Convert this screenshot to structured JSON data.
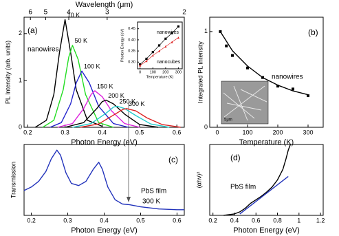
{
  "chart_data": [
    {
      "type": "line",
      "xlabel": "Photon Energy (eV)",
      "ylabel": "PL Intensity (arb. units)",
      "top_axis_label": "Wavelength (μm)",
      "xlim": [
        0.19,
        0.62
      ],
      "ylim": [
        0,
        2.35
      ],
      "xticks": [
        0.2,
        0.3,
        0.4,
        0.5,
        0.6
      ],
      "yticks": [
        0,
        1,
        2
      ],
      "top_ticks": [
        {
          "value": 0.207,
          "label": "6"
        },
        {
          "value": 0.248,
          "label": "5"
        },
        {
          "value": 0.31,
          "label": "4"
        },
        {
          "value": 0.413,
          "label": "3"
        },
        {
          "value": 0.62,
          "label": "2"
        }
      ],
      "annotations": [
        {
          "text": "(a)",
          "color": "#000"
        },
        {
          "text": "nanowires",
          "color": "#000"
        }
      ],
      "series": [
        {
          "name": "10 K",
          "color": "#000000",
          "x": [
            0.22,
            0.25,
            0.27,
            0.285,
            0.3,
            0.315,
            0.33,
            0.36,
            0.4
          ],
          "values": [
            0,
            0.15,
            0.7,
            1.6,
            2.3,
            1.6,
            0.8,
            0.15,
            0.02
          ]
        },
        {
          "name": "50 K",
          "color": "#22dd22",
          "x": [
            0.24,
            0.27,
            0.295,
            0.31,
            0.32,
            0.335,
            0.355,
            0.39,
            0.43
          ],
          "values": [
            0,
            0.15,
            0.8,
            1.5,
            1.75,
            1.45,
            0.7,
            0.1,
            0
          ]
        },
        {
          "name": "100 K",
          "color": "#2222cc",
          "x": [
            0.26,
            0.29,
            0.315,
            0.33,
            0.345,
            0.365,
            0.39,
            0.43,
            0.47
          ],
          "values": [
            0,
            0.1,
            0.5,
            0.95,
            1.2,
            0.95,
            0.45,
            0.08,
            0
          ]
        },
        {
          "name": "150 K",
          "color": "#dd22dd",
          "x": [
            0.28,
            0.32,
            0.35,
            0.37,
            0.38,
            0.4,
            0.425,
            0.46,
            0.5
          ],
          "values": [
            0,
            0.08,
            0.4,
            0.7,
            0.78,
            0.65,
            0.35,
            0.08,
            0
          ]
        },
        {
          "name": "200 K",
          "color": "#000000",
          "x": [
            0.3,
            0.35,
            0.385,
            0.4,
            0.41,
            0.43,
            0.46,
            0.5,
            0.55
          ],
          "values": [
            0,
            0.1,
            0.4,
            0.55,
            0.58,
            0.5,
            0.28,
            0.06,
            0
          ]
        },
        {
          "name": "250 K",
          "color": "#22cccc",
          "x": [
            0.32,
            0.37,
            0.41,
            0.43,
            0.44,
            0.46,
            0.49,
            0.53,
            0.58
          ],
          "values": [
            0,
            0.08,
            0.3,
            0.43,
            0.45,
            0.4,
            0.25,
            0.07,
            0
          ]
        },
        {
          "name": "300 K",
          "color": "#dd2222",
          "x": [
            0.34,
            0.39,
            0.43,
            0.455,
            0.465,
            0.49,
            0.52,
            0.56,
            0.61
          ],
          "values": [
            0,
            0.07,
            0.26,
            0.38,
            0.4,
            0.35,
            0.2,
            0.06,
            0
          ]
        }
      ]
    },
    {
      "type": "scatter",
      "xlabel": "Temperature (K)",
      "ylabel": "Photon Energy (eV)",
      "xlim": [
        -20,
        330
      ],
      "ylim": [
        0.27,
        0.48
      ],
      "xticks": [
        0,
        100,
        200,
        300
      ],
      "yticks": [
        {
          "value": 0.3,
          "label": "0.30"
        },
        0.35,
        {
          "value": 0.4,
          "label": "0.40"
        },
        0.45
      ],
      "annotations": [],
      "series": [
        {
          "name": "nanowires",
          "color": "#000000",
          "marker": "square",
          "x": [
            0,
            50,
            100,
            150,
            200,
            250,
            300
          ],
          "values": [
            0.29,
            0.315,
            0.345,
            0.375,
            0.405,
            0.43,
            0.46
          ]
        },
        {
          "name": "nanocubes",
          "color": "#dd2222",
          "marker": "triangle",
          "x": [
            0,
            50,
            100,
            150,
            200,
            250,
            300
          ],
          "values": [
            0.285,
            0.305,
            0.33,
            0.35,
            0.37,
            0.39,
            0.41
          ]
        }
      ]
    },
    {
      "type": "scatter",
      "xlabel": "Temperature (K)",
      "ylabel": "Integrated PL Intensity",
      "xlim": [
        -25,
        350
      ],
      "ylim": [
        0,
        1.15
      ],
      "xticks": [
        0,
        100,
        200,
        300
      ],
      "yticks": [
        0,
        1
      ],
      "annotations": [
        {
          "text": "(b)",
          "color": "#000"
        },
        {
          "text": "nanowires",
          "color": "#000"
        },
        {
          "text": "5μm",
          "color": "#000"
        }
      ],
      "series": [
        {
          "color": "#000000",
          "marker": "square",
          "line": false,
          "x": [
            10,
            30,
            50,
            100,
            150,
            200,
            250,
            300
          ],
          "values": [
            1.0,
            0.85,
            0.75,
            0.62,
            0.52,
            0.43,
            0.4,
            0.33
          ]
        },
        {
          "color": "#000000",
          "x": [
            10,
            50,
            100,
            150,
            200,
            250,
            300
          ],
          "values": [
            1.0,
            0.8,
            0.64,
            0.52,
            0.44,
            0.38,
            0.34
          ]
        }
      ]
    },
    {
      "type": "line",
      "xlabel": "Photon Energy (eV)",
      "ylabel": "Transmission",
      "xlim": [
        0.18,
        0.62
      ],
      "ylim": [
        0,
        1
      ],
      "xticks": [
        0.2,
        0.3,
        0.4,
        0.5,
        0.6
      ],
      "annotations": [
        {
          "text": "(c)",
          "color": "#000"
        },
        {
          "text": "PbS film",
          "color": "#000"
        },
        {
          "text": "300 K",
          "color": "#2222cc"
        }
      ],
      "series": [
        {
          "color": "#2233bb",
          "x": [
            0.18,
            0.2,
            0.22,
            0.24,
            0.255,
            0.27,
            0.28,
            0.295,
            0.31,
            0.33,
            0.35,
            0.37,
            0.385,
            0.395,
            0.41,
            0.43,
            0.45,
            0.47,
            0.5,
            0.55,
            0.6,
            0.62
          ],
          "values": [
            0.35,
            0.4,
            0.48,
            0.62,
            0.8,
            0.92,
            0.85,
            0.6,
            0.45,
            0.42,
            0.48,
            0.65,
            0.75,
            0.65,
            0.4,
            0.22,
            0.16,
            0.15,
            0.12,
            0.09,
            0.08,
            0.08
          ]
        }
      ]
    },
    {
      "type": "line",
      "xlabel": "Photon Energy (eV)",
      "ylabel": "(αhν)²",
      "xlim": [
        0.17,
        1.225
      ],
      "ylim": [
        0,
        1
      ],
      "xticks": [
        0.2,
        0.4,
        0.6,
        0.8,
        1.0,
        1.2
      ],
      "annotations": [
        {
          "text": "(d)",
          "color": "#000"
        },
        {
          "text": "PbS film",
          "color": "#000"
        }
      ],
      "series": [
        {
          "color": "#000000",
          "x": [
            0.3,
            0.4,
            0.45,
            0.5,
            0.55,
            0.6,
            0.65,
            0.7,
            0.75,
            0.8,
            0.85,
            0.88,
            0.9,
            0.92
          ],
          "values": [
            0,
            0.02,
            0.05,
            0.1,
            0.17,
            0.22,
            0.27,
            0.33,
            0.4,
            0.5,
            0.65,
            0.8,
            0.92,
            1.0
          ]
        },
        {
          "color": "#2233bb",
          "x": [
            0.45,
            0.9
          ],
          "values": [
            0.02,
            0.55
          ]
        }
      ]
    }
  ]
}
